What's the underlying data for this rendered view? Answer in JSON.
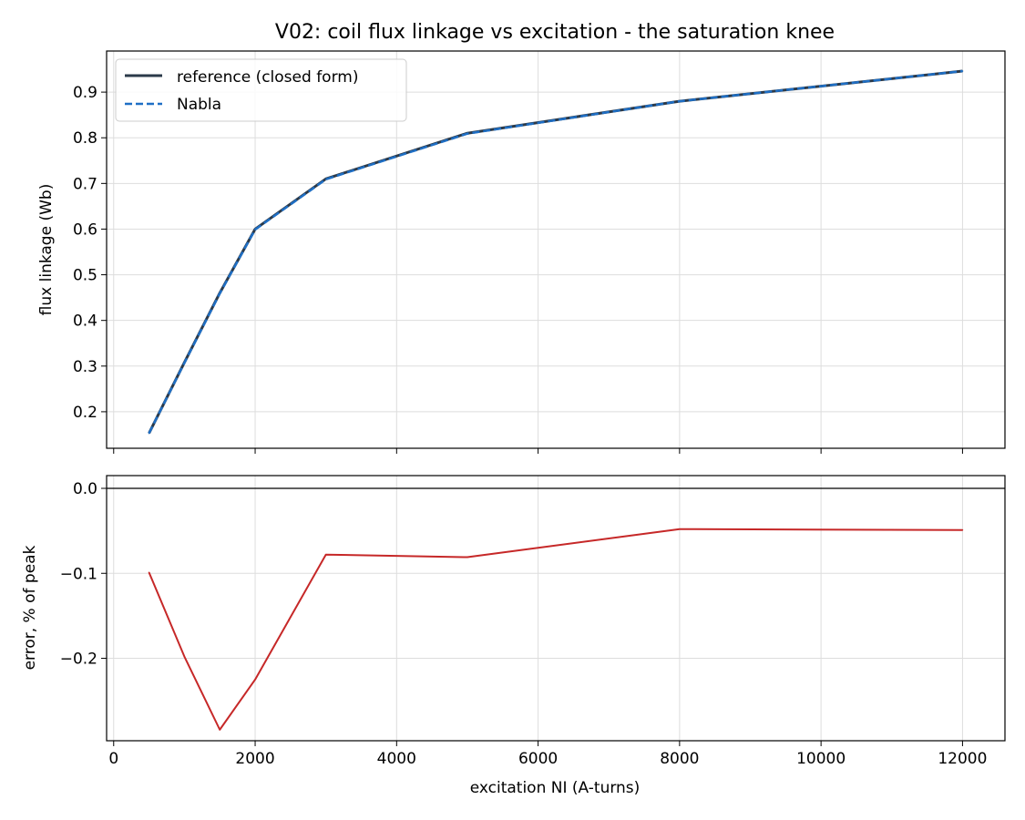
{
  "chart_data": [
    {
      "type": "line",
      "title": "V02: coil flux linkage vs excitation - the saturation knee",
      "xlabel": "",
      "ylabel": "flux linkage (Wb)",
      "xlim": [
        -100,
        12600
      ],
      "ylim": [
        0.12,
        0.99
      ],
      "xticks": [
        0,
        2000,
        4000,
        6000,
        8000,
        10000,
        12000
      ],
      "x_ticklabels_shown": false,
      "yticks": [
        0.2,
        0.3,
        0.4,
        0.5,
        0.6,
        0.7,
        0.8,
        0.9
      ],
      "ytick_labels": [
        "0.2",
        "0.3",
        "0.4",
        "0.5",
        "0.6",
        "0.7",
        "0.8",
        "0.9"
      ],
      "grid": true,
      "legend_position": "top-left",
      "x": [
        500,
        1000,
        1500,
        2000,
        3000,
        5000,
        8000,
        12000
      ],
      "series": [
        {
          "name": "reference (closed form)",
          "color": "#2b3a4a",
          "style": "solid",
          "values": [
            0.153,
            0.308,
            0.46,
            0.6,
            0.71,
            0.81,
            0.88,
            0.946
          ]
        },
        {
          "name": "Nabla",
          "color": "#1f6fc5",
          "style": "dashed",
          "values": [
            0.153,
            0.307,
            0.459,
            0.599,
            0.709,
            0.809,
            0.88,
            0.946
          ]
        }
      ]
    },
    {
      "type": "line",
      "title": "",
      "xlabel": "excitation NI (A-turns)",
      "ylabel": "error, % of peak",
      "xlim": [
        -100,
        12600
      ],
      "ylim": [
        -0.297,
        0.015
      ],
      "xticks": [
        0,
        2000,
        4000,
        6000,
        8000,
        10000,
        12000
      ],
      "xtick_labels": [
        "0",
        "2000",
        "4000",
        "6000",
        "8000",
        "10000",
        "12000"
      ],
      "yticks": [
        0.0,
        -0.1,
        -0.2
      ],
      "ytick_labels": [
        "0.0",
        "−0.1",
        "−0.2"
      ],
      "grid": true,
      "reference_line": {
        "y": 0.0,
        "color": "#000000"
      },
      "x": [
        500,
        1000,
        1500,
        2000,
        3000,
        5000,
        8000,
        12000
      ],
      "series": [
        {
          "color": "#c62828",
          "style": "solid",
          "values": [
            -0.099,
            -0.198,
            -0.284,
            -0.225,
            -0.078,
            -0.081,
            -0.048,
            -0.049
          ]
        }
      ]
    }
  ]
}
